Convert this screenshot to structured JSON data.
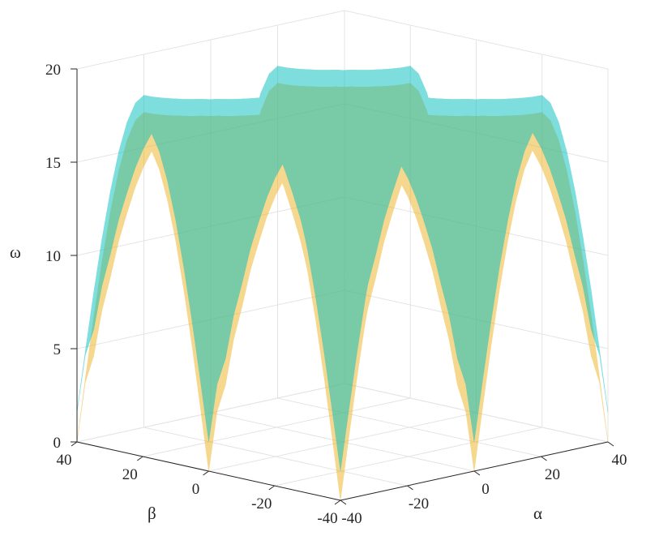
{
  "chart_data": {
    "type": "surface3d",
    "title": "",
    "xlabel": "α",
    "ylabel": "β",
    "zlabel": "ω",
    "xlim": [
      -40,
      40
    ],
    "ylim": [
      -40,
      40
    ],
    "zlim": [
      0,
      20
    ],
    "x_ticks": [
      "-40",
      "-20",
      "0",
      "20",
      "40"
    ],
    "y_ticks": [
      "-40",
      "-20",
      "0",
      "20",
      "40"
    ],
    "z_ticks": [
      "0",
      "5",
      "10",
      "15",
      "20"
    ],
    "grid": true,
    "series": [
      {
        "color": "#EDB120",
        "opacity": 0.5,
        "corner_z": 17.3,
        "sample": [
          {
            "x": 40,
            "y": 40,
            "z": 17.3
          },
          {
            "x": 40,
            "y": 20,
            "z": 12.5
          },
          {
            "x": 40,
            "y": 0,
            "z": 17.3
          },
          {
            "x": 0,
            "y": 0,
            "z": 0
          },
          {
            "x": 0,
            "y": 40,
            "z": 17.3
          },
          {
            "x": 40,
            "y": -40,
            "z": 17.3
          }
        ]
      },
      {
        "color": "#00BFBF",
        "opacity": 0.5,
        "corner_z": 18.2,
        "sample": [
          {
            "x": 40,
            "y": 40,
            "z": 18.2
          },
          {
            "x": 40,
            "y": 20,
            "z": 14.2
          },
          {
            "x": 40,
            "y": 0,
            "z": 19.8
          },
          {
            "x": 0,
            "y": 40,
            "z": 19.0
          },
          {
            "x": 40,
            "y": -40,
            "z": 18.2
          }
        ]
      }
    ]
  }
}
